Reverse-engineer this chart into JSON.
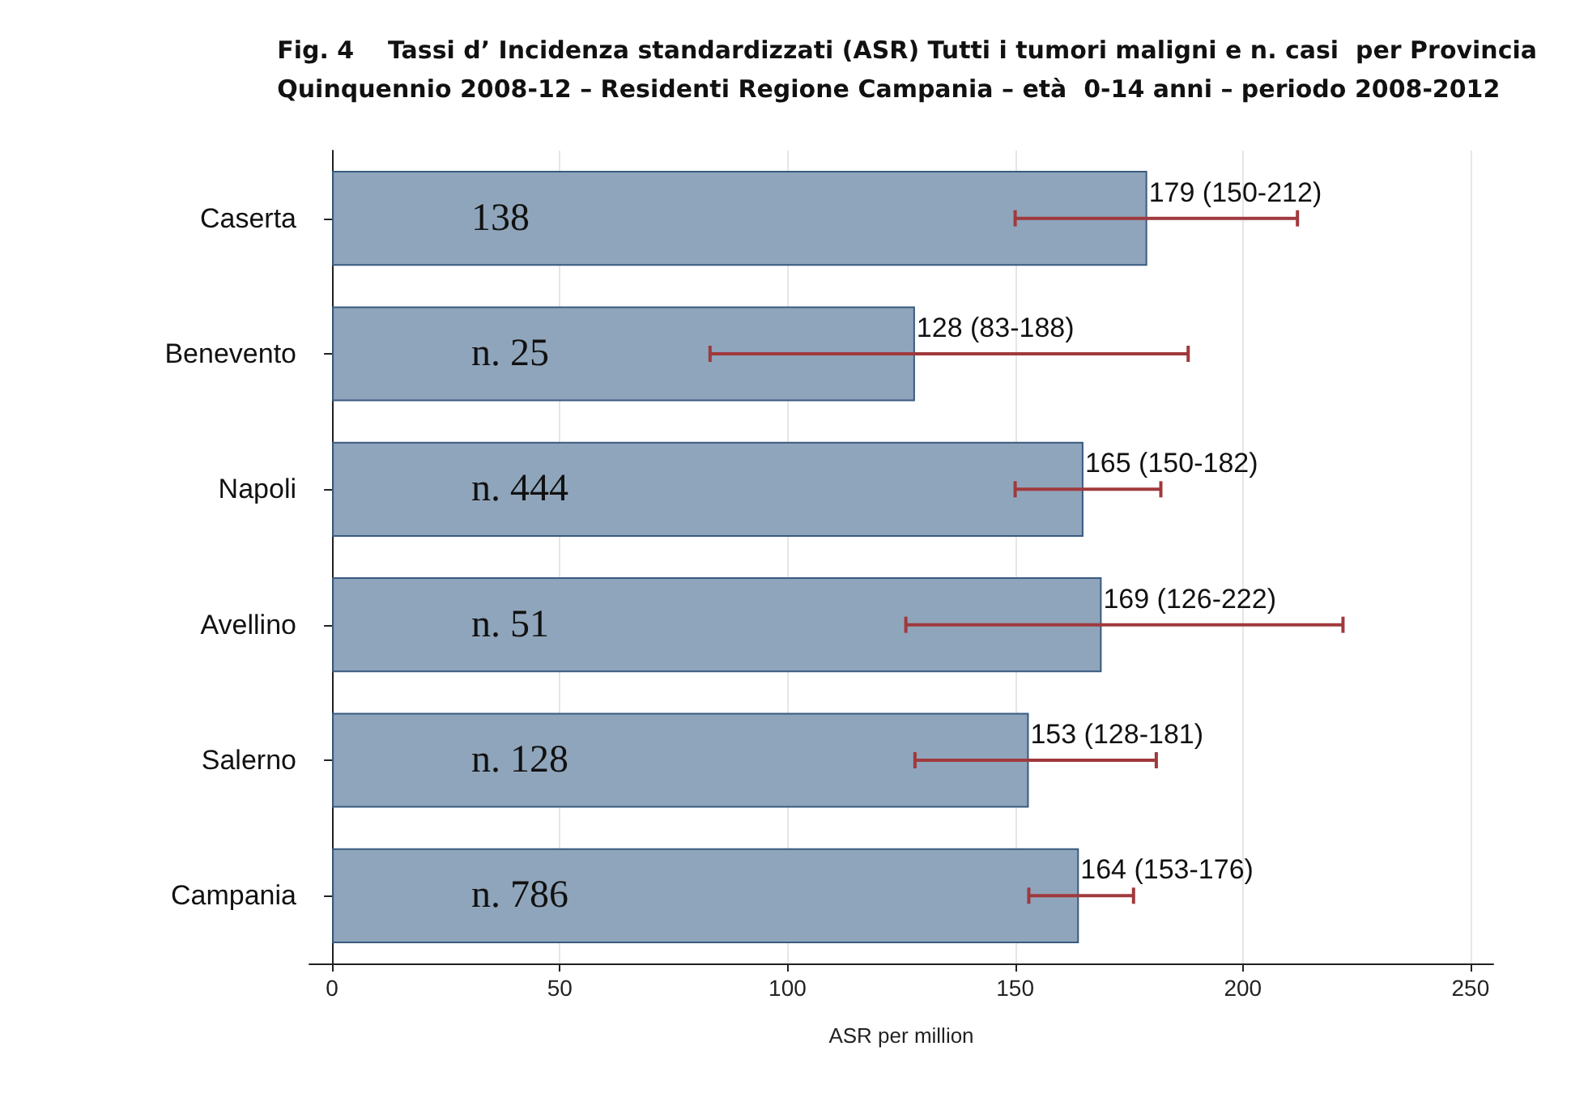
{
  "chart_data": {
    "type": "bar",
    "orientation": "horizontal",
    "title": "Fig. 4    Tassi d’ Incidenza standardizzati (ASR) Tutti i tumori maligni e n. casi  per Provincia\nQuinquennio 2008-12 – Residenti Regione Campania – età  0-14 anni – periodo 2008-2012",
    "xlabel": "ASR per million",
    "categories": [
      "Caserta",
      "Benevento",
      "Napoli",
      "Avellino",
      "Salerno",
      "Campania"
    ],
    "values": [
      179,
      128,
      165,
      169,
      153,
      164
    ],
    "errors": [
      [
        150,
        212
      ],
      [
        83,
        188
      ],
      [
        150,
        182
      ],
      [
        126,
        222
      ],
      [
        128,
        181
      ],
      [
        153,
        176
      ]
    ],
    "value_labels": [
      "179 (150-212)",
      "128 (83-188)",
      "165 (150-182)",
      "169 (126-222)",
      "153 (128-181)",
      "164 (153-176)"
    ],
    "color": "#8fa5bb",
    "xlim": [
      -5,
      255
    ],
    "xticks": [
      0,
      50,
      100,
      150,
      200,
      250
    ],
    "grid": "x",
    "annotations": [
      "138",
      "n. 25",
      "n. 444",
      "n. 51",
      "n. 128",
      "n. 786"
    ]
  }
}
